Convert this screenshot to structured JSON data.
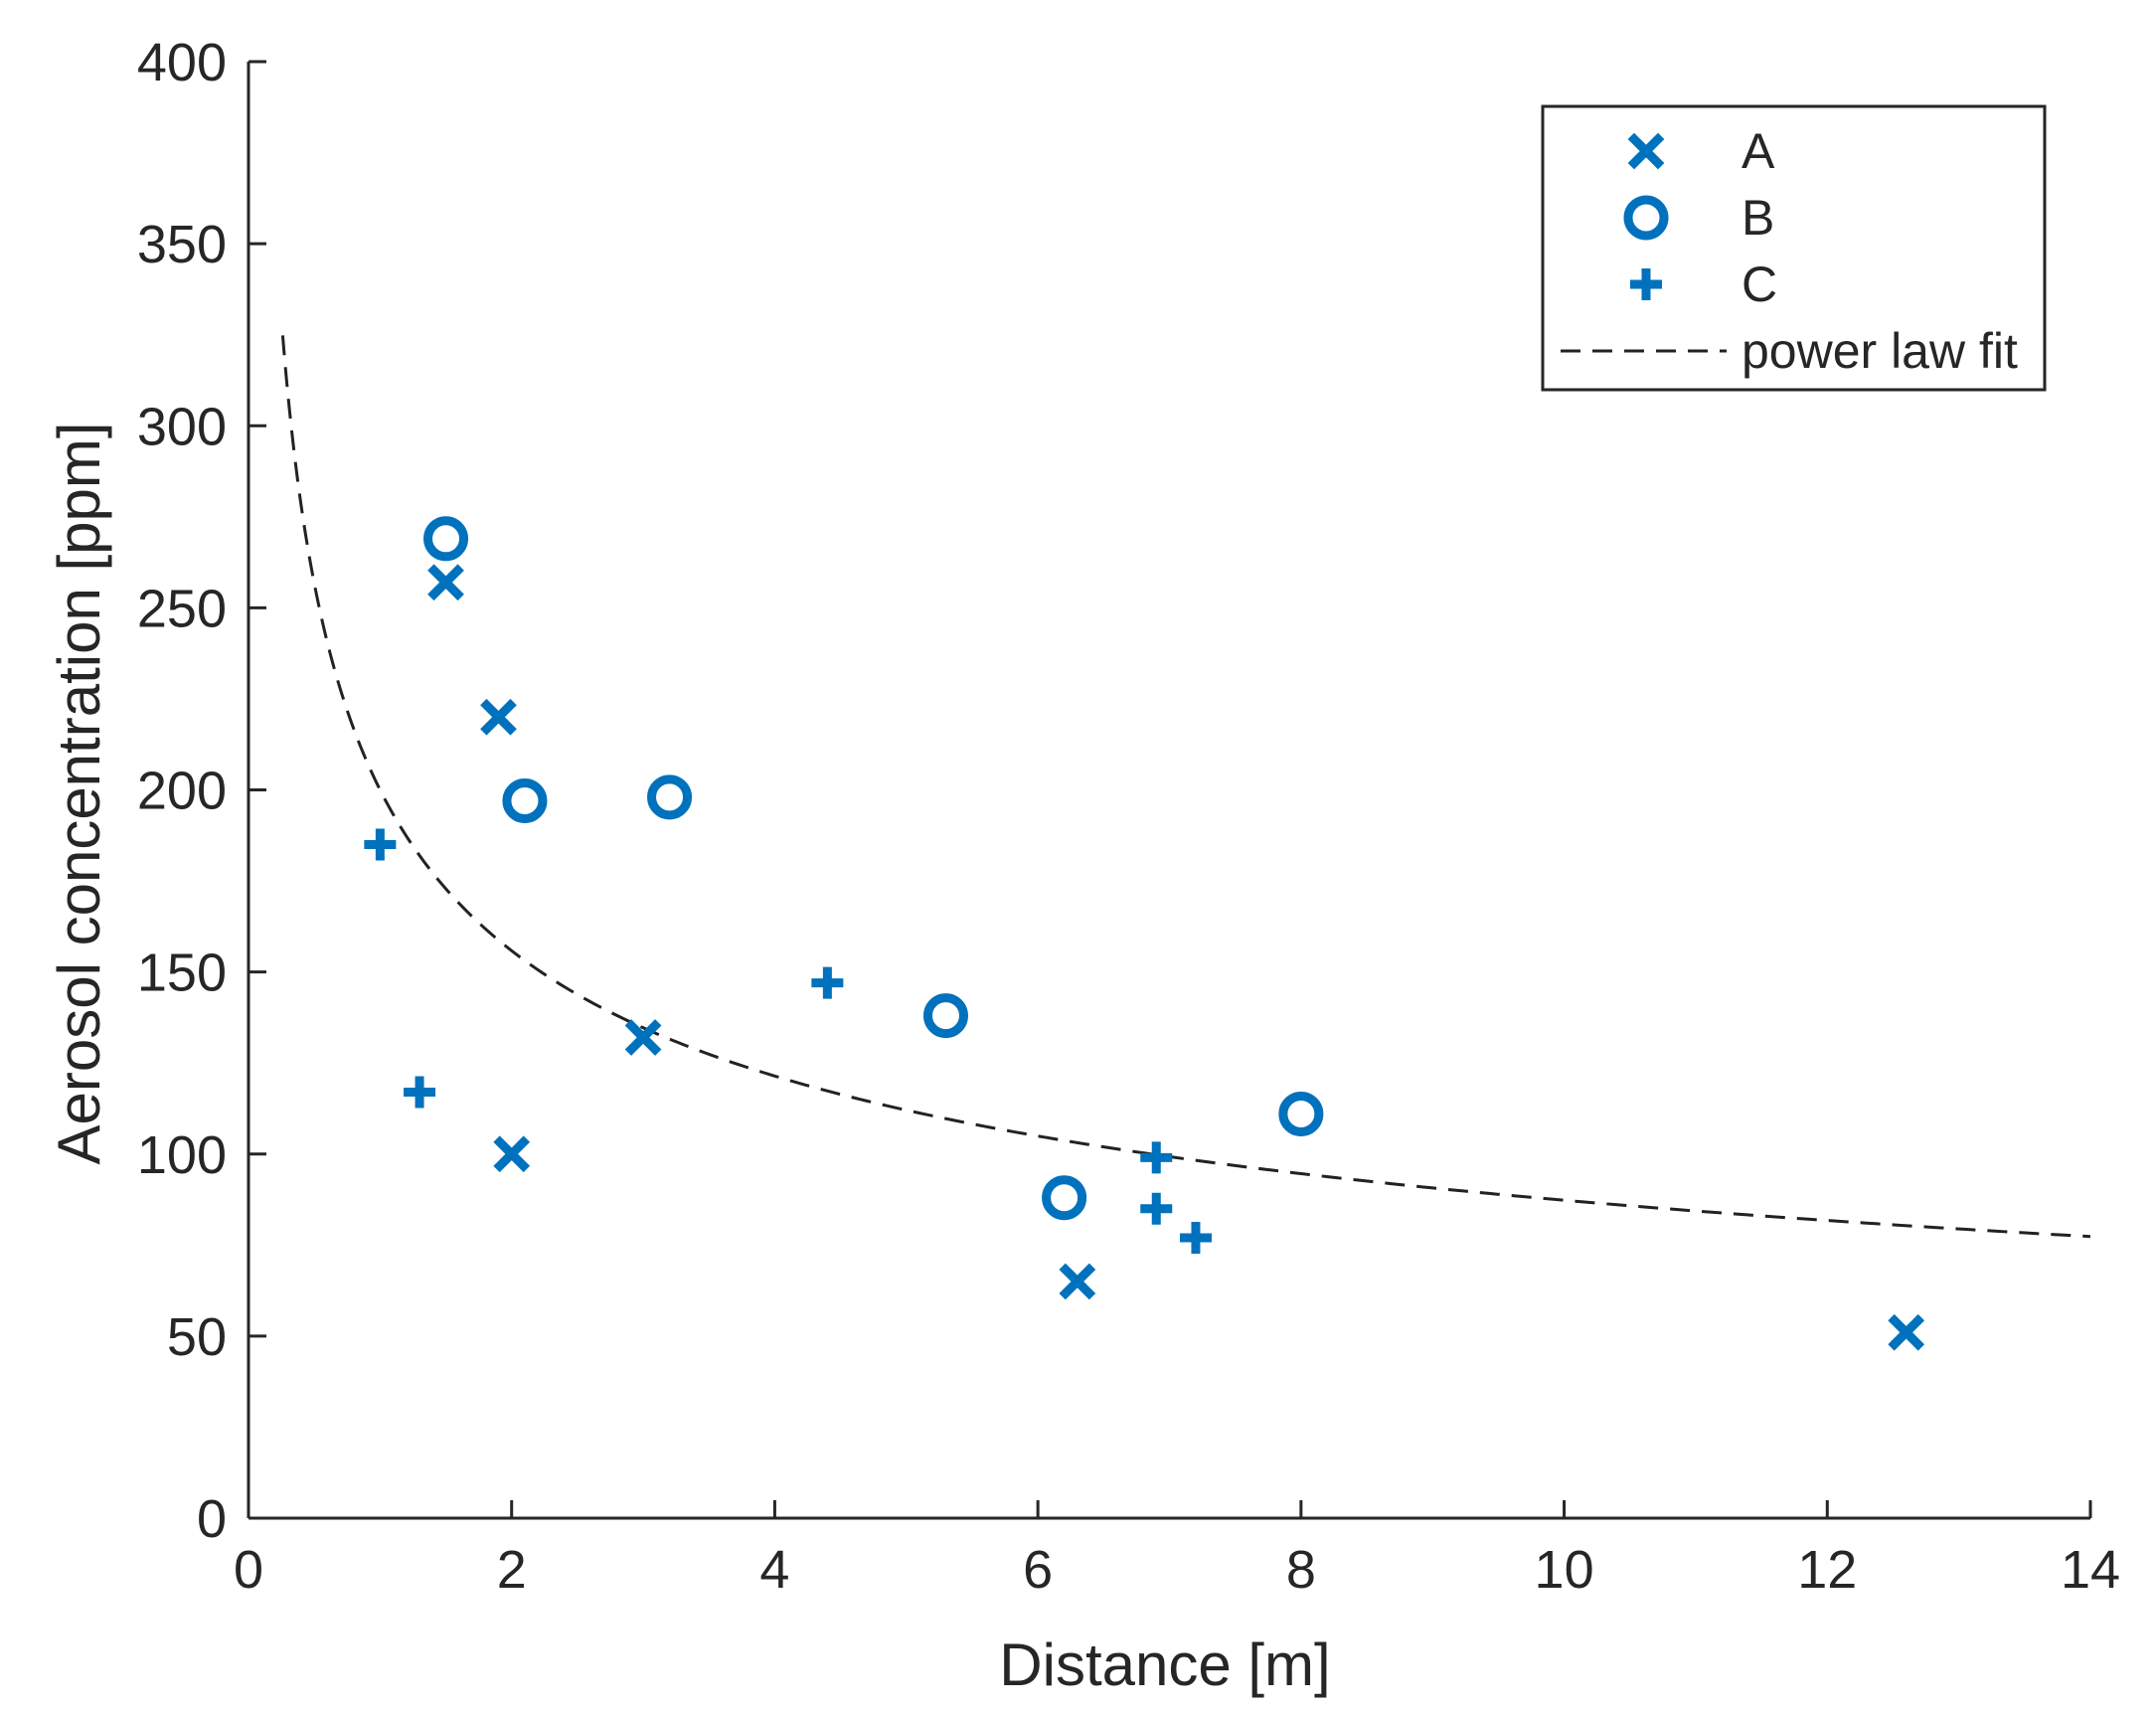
{
  "chart_data": {
    "type": "scatter",
    "title": "",
    "xlabel": "Distance [m]",
    "ylabel": "Aerosol concentration [ppm]",
    "xlim": [
      0,
      14
    ],
    "ylim": [
      0,
      400
    ],
    "xticks": [
      0,
      2,
      4,
      6,
      8,
      10,
      12,
      14
    ],
    "yticks": [
      0,
      50,
      100,
      150,
      200,
      250,
      300,
      350,
      400
    ],
    "grid": false,
    "legend_position": "top-right",
    "marker_color": "#0072BD",
    "series": [
      {
        "name": "A",
        "marker": "x",
        "points": [
          [
            1.5,
            257
          ],
          [
            1.9,
            220
          ],
          [
            3.0,
            132
          ],
          [
            2.0,
            100
          ],
          [
            6.3,
            65
          ],
          [
            12.6,
            51
          ]
        ]
      },
      {
        "name": "B",
        "marker": "o",
        "points": [
          [
            1.5,
            269
          ],
          [
            2.1,
            197
          ],
          [
            3.2,
            198
          ],
          [
            5.3,
            138
          ],
          [
            6.2,
            88
          ],
          [
            8.0,
            111
          ]
        ]
      },
      {
        "name": "C",
        "marker": "+",
        "points": [
          [
            1.0,
            185
          ],
          [
            1.3,
            117
          ],
          [
            4.4,
            147
          ],
          [
            6.9,
            99
          ],
          [
            6.9,
            85
          ],
          [
            7.2,
            77
          ]
        ]
      },
      {
        "name": "power law fit",
        "marker": "dashed-line",
        "model": "y = a * x^b",
        "a": 200,
        "b": -0.36,
        "x_range": [
          0.26,
          14
        ]
      }
    ]
  }
}
